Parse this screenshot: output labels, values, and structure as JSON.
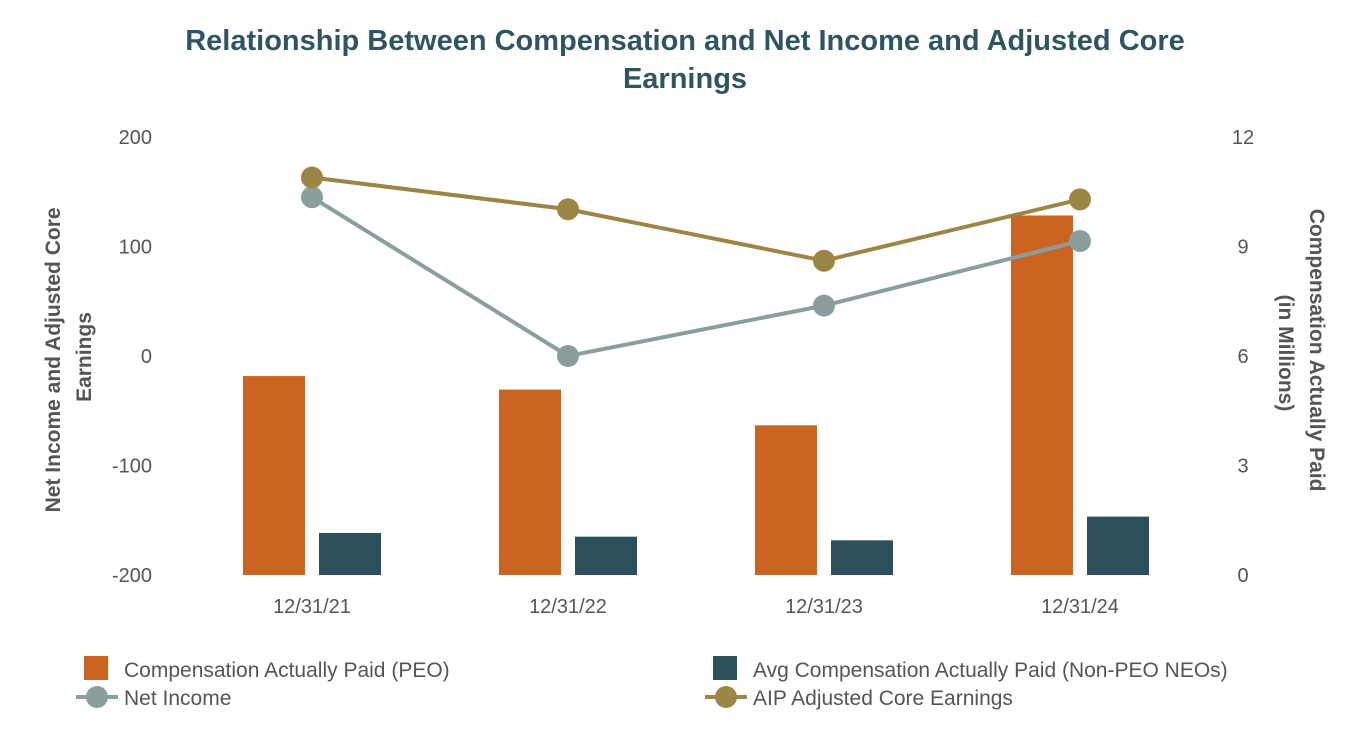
{
  "chart_data": {
    "type": "bar",
    "title_lines": [
      "Relationship Between Compensation and Net Income and Adjusted Core",
      "Earnings"
    ],
    "categories": [
      "12/31/21",
      "12/31/22",
      "12/31/23",
      "12/31/24"
    ],
    "left_axis": {
      "title_lines": [
        "Net Income and Adjusted Core",
        "Earnings"
      ],
      "ylim": [
        -200,
        200
      ],
      "ticks": [
        200,
        100,
        0,
        -100,
        -200
      ],
      "tick_labels": [
        "200",
        "100",
        "0",
        "-100",
        "-200"
      ]
    },
    "right_axis": {
      "title_lines": [
        "Compensation Actually Paid",
        "(in Millions)"
      ],
      "ylim": [
        0,
        12
      ],
      "ticks": [
        12,
        9,
        6,
        3,
        0
      ],
      "tick_labels": [
        "12",
        "9",
        "6",
        "3",
        "0"
      ]
    },
    "series": [
      {
        "name": "Compensation Actually Paid (PEO)",
        "type": "bar",
        "axis": "right",
        "color": "#cb6420",
        "values": [
          5.45,
          5.08,
          4.1,
          9.85
        ]
      },
      {
        "name": "Avg Compensation Actually Paid (Non-PEO NEOs)",
        "type": "bar",
        "axis": "right",
        "color": "#2b4f5b",
        "values": [
          1.15,
          1.05,
          0.95,
          1.6
        ]
      },
      {
        "name": "Net Income",
        "type": "line",
        "axis": "left",
        "color": "#8a9f9d",
        "values": [
          145,
          0,
          46,
          105
        ]
      },
      {
        "name": "AIP Adjusted Core Earnings",
        "type": "line",
        "axis": "left",
        "color": "#9b8645",
        "values": [
          163,
          134,
          87,
          143
        ]
      }
    ],
    "legend": [
      {
        "label": "Compensation Actually Paid (PEO)",
        "marker": "square",
        "color": "#cb6420"
      },
      {
        "label": "Avg Compensation Actually Paid (Non-PEO NEOs)",
        "marker": "square",
        "color": "#2b4f5b"
      },
      {
        "label": "Net Income",
        "marker": "line-dot",
        "color": "#8a9f9d"
      },
      {
        "label": "AIP Adjusted Core Earnings",
        "marker": "line-dot",
        "color": "#9b8645"
      }
    ],
    "legend_position": "bottom",
    "grid": false
  }
}
